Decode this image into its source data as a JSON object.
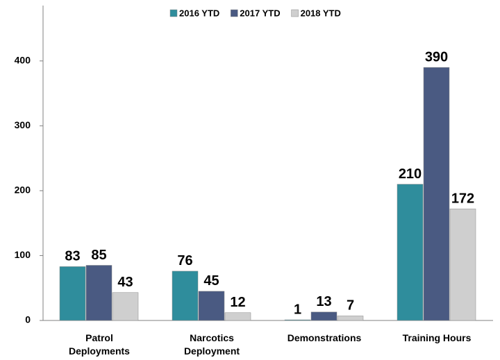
{
  "chart_data": {
    "type": "bar",
    "categories": [
      "Patrol Deployments",
      "Narcotics Deployment",
      "Demonstrations",
      "Training Hours"
    ],
    "series": [
      {
        "name": "2016 YTD",
        "color": "#2f8d9c",
        "values": [
          83,
          76,
          1,
          210
        ]
      },
      {
        "name": "2017 YTD",
        "color": "#4a5a82",
        "values": [
          85,
          45,
          13,
          390
        ]
      },
      {
        "name": "2018 YTD",
        "color": "#cfcfcf",
        "values": [
          43,
          12,
          7,
          172
        ]
      }
    ],
    "ylim": [
      0,
      480
    ],
    "yticks": [
      0,
      100,
      200,
      300,
      400
    ],
    "grid": false,
    "legend": "top"
  }
}
